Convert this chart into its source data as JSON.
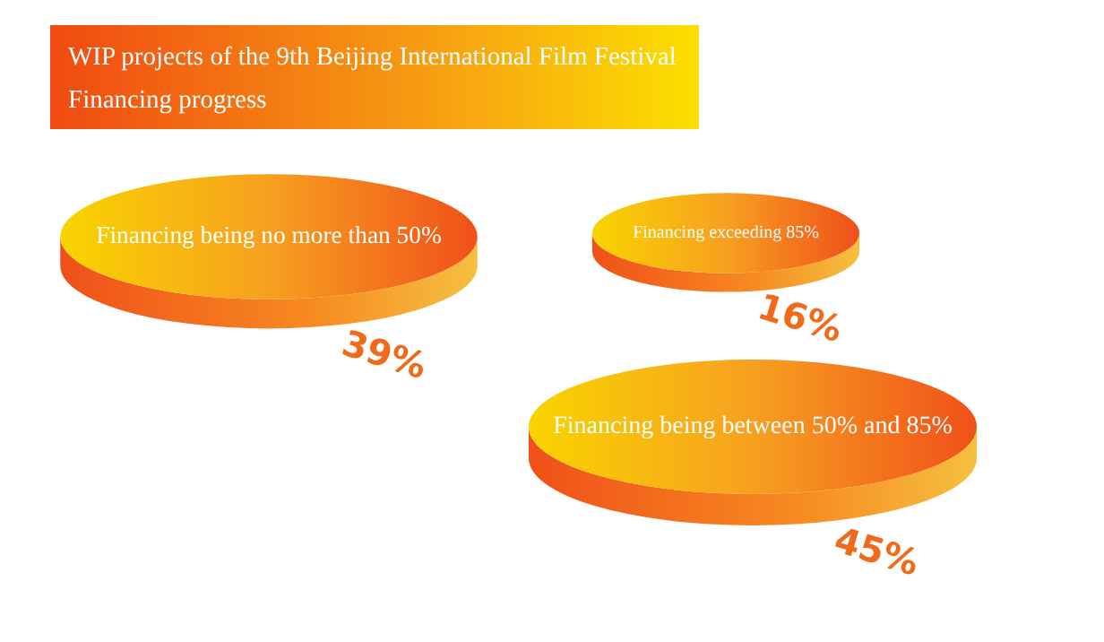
{
  "chart_data": {
    "type": "other",
    "title": "WIP projects of the 9th Beijing International Film Festival",
    "subtitle": "Financing progress",
    "categories": [
      "Financing being no more than 50%",
      "Financing exceeding 85%",
      "Financing being between 50% and 85%"
    ],
    "values": [
      39,
      16,
      45
    ],
    "value_labels": [
      "39%",
      "16%",
      "45%"
    ],
    "color": "#f0501a"
  }
}
